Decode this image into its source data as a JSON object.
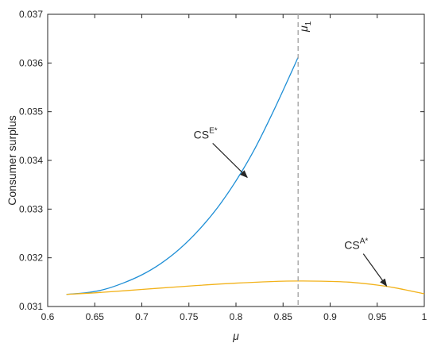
{
  "chart_data": {
    "type": "line",
    "xlabel": "μ",
    "ylabel": "Consumer surplus",
    "xlim": [
      0.6,
      1.0
    ],
    "ylim": [
      0.031,
      0.037
    ],
    "grid": false,
    "xticks": [
      "0.6",
      "0.65",
      "0.7",
      "0.75",
      "0.8",
      "0.85",
      "0.9",
      "0.95",
      "1"
    ],
    "yticks": [
      "0.031",
      "0.032",
      "0.033",
      "0.034",
      "0.035",
      "0.036",
      "0.037"
    ],
    "series": [
      {
        "color": "#1f8fd6",
        "x": [
          0.62,
          0.64,
          0.66,
          0.68,
          0.7,
          0.72,
          0.74,
          0.76,
          0.78,
          0.8,
          0.82,
          0.84,
          0.86,
          0.866
        ],
        "y": [
          0.03125,
          0.03128,
          0.03135,
          0.03148,
          0.03165,
          0.03188,
          0.03218,
          0.03256,
          0.03302,
          0.03358,
          0.03424,
          0.03502,
          0.03586,
          0.03612
        ]
      },
      {
        "color": "#f2b21a",
        "x": [
          0.62,
          0.65,
          0.7,
          0.75,
          0.8,
          0.85,
          0.89,
          0.92,
          0.95,
          0.97,
          1.0
        ],
        "y": [
          0.03125,
          0.03128,
          0.03135,
          0.03142,
          0.03148,
          0.03152,
          0.03152,
          0.0315,
          0.03144,
          0.03138,
          0.03126
        ]
      }
    ],
    "vline": {
      "x": 0.866,
      "label": "μ",
      "label_sub": "1",
      "color": "#a6a6a6"
    },
    "annotations": [
      {
        "text": "CS",
        "sup": "E*",
        "text_x": 0.755,
        "text_y": 0.03445,
        "arrow_to_x": 0.812,
        "arrow_to_y": 0.03365
      },
      {
        "text": "CS",
        "sup": "A*",
        "text_x": 0.915,
        "text_y": 0.03218,
        "arrow_to_x": 0.96,
        "arrow_to_y": 0.03142
      }
    ]
  }
}
